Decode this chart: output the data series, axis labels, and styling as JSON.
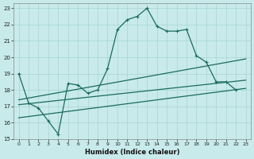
{
  "xlabel": "Humidex (Indice chaleur)",
  "bg_color": "#c8eaea",
  "grid_color": "#a8d4d4",
  "line_color": "#1a6b5a",
  "xlim": [
    -0.5,
    23.5
  ],
  "ylim": [
    15,
    23.3
  ],
  "xticks": [
    0,
    1,
    2,
    3,
    4,
    5,
    6,
    7,
    8,
    9,
    10,
    11,
    12,
    13,
    14,
    15,
    16,
    17,
    18,
    19,
    20,
    21,
    22,
    23
  ],
  "yticks": [
    15,
    16,
    17,
    18,
    19,
    20,
    21,
    22,
    23
  ],
  "main_x": [
    0,
    1,
    2,
    3,
    4,
    5,
    6,
    7,
    8,
    9,
    10,
    11,
    12,
    13,
    14,
    15,
    16,
    17,
    18,
    19,
    20,
    21,
    22
  ],
  "main_y": [
    19,
    17.2,
    16.9,
    16.1,
    15.3,
    18.4,
    18.3,
    17.8,
    18.0,
    19.3,
    21.7,
    22.3,
    22.5,
    23.0,
    21.9,
    21.6,
    21.6,
    21.7,
    20.1,
    19.7,
    18.5,
    18.5,
    18.0
  ],
  "trend1_x": [
    0,
    23
  ],
  "trend1_y": [
    17.4,
    19.9
  ],
  "trend2_x": [
    0,
    23
  ],
  "trend2_y": [
    17.1,
    18.6
  ],
  "trend3_x": [
    0,
    23
  ],
  "trend3_y": [
    16.3,
    18.1
  ]
}
